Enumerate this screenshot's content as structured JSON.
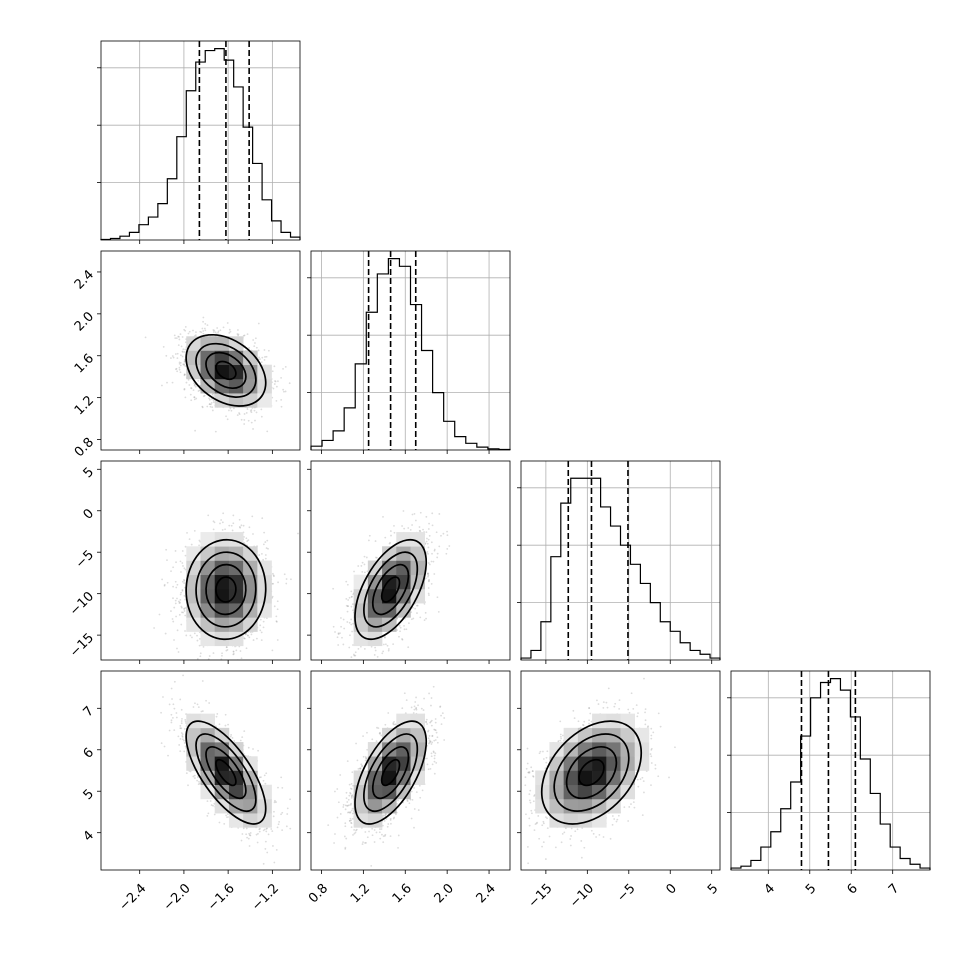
{
  "chart_data": {
    "type": "corner",
    "title": "",
    "grid": true,
    "parameters": [
      {
        "index": 0,
        "range": [
          -2.75,
          -0.95
        ],
        "ticks": [
          -2.4,
          -2.0,
          -1.6,
          -1.2
        ],
        "tick_labels": [
          "−2.4",
          "−2.0",
          "−1.6",
          "−1.2"
        ],
        "quantiles": [
          -1.86,
          -1.62,
          -1.41
        ],
        "histogram": [
          0.003,
          0.008,
          0.02,
          0.04,
          0.08,
          0.12,
          0.19,
          0.32,
          0.54,
          0.78,
          0.93,
          0.99,
          1.0,
          0.94,
          0.8,
          0.59,
          0.4,
          0.21,
          0.1,
          0.04,
          0.015
        ],
        "histogram_ticks": [
          0.3,
          0.6,
          0.9
        ]
      },
      {
        "index": 1,
        "range": [
          0.7,
          2.6
        ],
        "ticks": [
          0.8,
          1.2,
          1.6,
          2.0,
          2.4
        ],
        "tick_labels": [
          "0.8",
          "1.2",
          "1.6",
          "2.0",
          "2.4"
        ],
        "quantiles": [
          1.25,
          1.46,
          1.7
        ],
        "histogram": [
          0.02,
          0.05,
          0.1,
          0.22,
          0.45,
          0.72,
          0.92,
          1.0,
          0.96,
          0.76,
          0.52,
          0.3,
          0.15,
          0.07,
          0.035,
          0.015,
          0.006,
          0.003
        ],
        "histogram_ticks": [
          0.3,
          0.6,
          0.9
        ]
      },
      {
        "index": 2,
        "range": [
          -18.0,
          6.0
        ],
        "ticks": [
          -15,
          -10,
          -5,
          0,
          5
        ],
        "tick_labels": [
          "−15",
          "−10",
          "−5",
          "0",
          "5"
        ],
        "quantiles": [
          -12.3,
          -9.5,
          -5.1
        ],
        "histogram": [
          0.01,
          0.05,
          0.2,
          0.54,
          0.82,
          0.95,
          0.95,
          0.95,
          0.8,
          0.7,
          0.6,
          0.5,
          0.4,
          0.3,
          0.2,
          0.15,
          0.09,
          0.05,
          0.03,
          0.01
        ],
        "histogram_ticks": [
          0.3,
          0.6,
          0.9
        ]
      },
      {
        "index": 3,
        "range": [
          3.1,
          7.9
        ],
        "ticks": [
          4,
          5,
          6,
          7
        ],
        "tick_labels": [
          "4",
          "5",
          "6",
          "7"
        ],
        "quantiles": [
          4.8,
          5.45,
          6.1
        ],
        "histogram": [
          0.01,
          0.02,
          0.05,
          0.12,
          0.2,
          0.32,
          0.46,
          0.7,
          0.9,
          0.98,
          1.0,
          0.94,
          0.8,
          0.58,
          0.4,
          0.24,
          0.12,
          0.06,
          0.03,
          0.01
        ],
        "histogram_ticks": [
          0.3,
          0.6,
          0.9
        ]
      }
    ],
    "pairs": [
      {
        "x": 0,
        "y": 1,
        "mean": [
          -1.62,
          1.46
        ],
        "sd": [
          0.18,
          0.17
        ],
        "corr": -0.35
      },
      {
        "x": 0,
        "y": 2,
        "mean": [
          -1.62,
          -9.5
        ],
        "sd": [
          0.18,
          3.0
        ],
        "corr": 0.02
      },
      {
        "x": 1,
        "y": 2,
        "mean": [
          1.46,
          -9.5
        ],
        "sd": [
          0.17,
          3.0
        ],
        "corr": 0.55
      },
      {
        "x": 0,
        "y": 3,
        "mean": [
          -1.62,
          5.45
        ],
        "sd": [
          0.18,
          0.62
        ],
        "corr": -0.7
      },
      {
        "x": 1,
        "y": 3,
        "mean": [
          1.46,
          5.45
        ],
        "sd": [
          0.17,
          0.62
        ],
        "corr": 0.6
      },
      {
        "x": 2,
        "y": 3,
        "mean": [
          -9.5,
          5.45
        ],
        "sd": [
          3.0,
          0.62
        ],
        "corr": 0.38
      }
    ],
    "contour_levels_sigma": [
      0.5,
      1.0,
      1.5,
      2.0
    ]
  }
}
